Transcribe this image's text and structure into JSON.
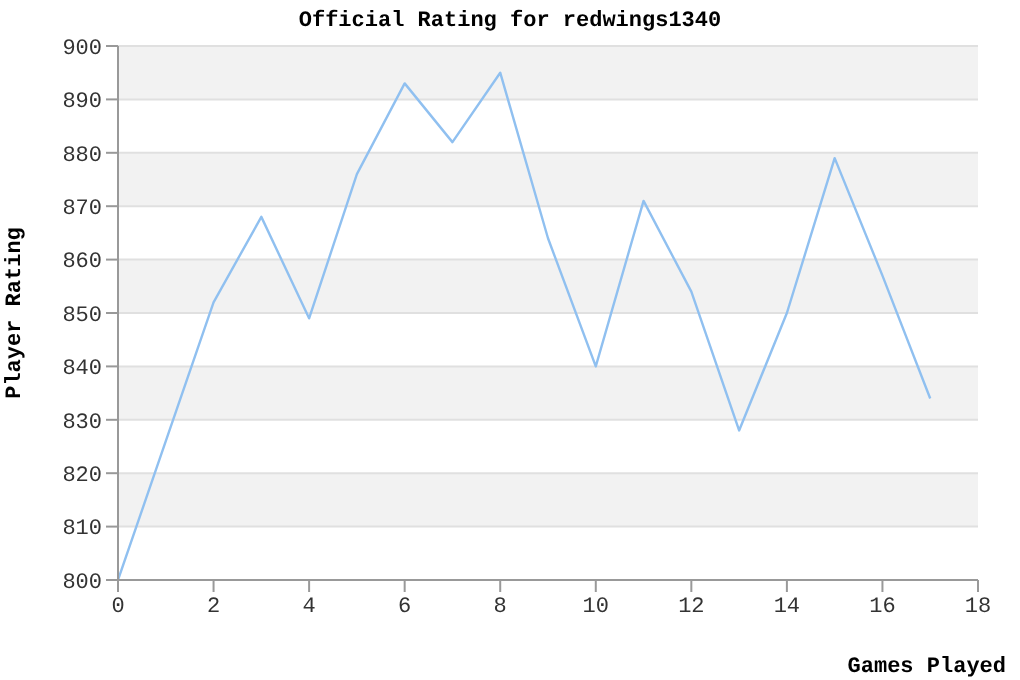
{
  "chart_data": {
    "type": "line",
    "title": "Official Rating for redwings1340",
    "xlabel": "Games Played",
    "ylabel": "Player Rating",
    "x": [
      0,
      1,
      2,
      3,
      4,
      5,
      6,
      7,
      8,
      9,
      10,
      11,
      12,
      13,
      14,
      15,
      16,
      17
    ],
    "series": [
      {
        "color": "#90c0f0",
        "values": [
          800,
          826,
          852,
          868,
          849,
          876,
          893,
          882,
          895,
          864,
          840,
          871,
          854,
          828,
          850,
          879,
          857,
          834
        ]
      }
    ],
    "xlim": [
      0,
      18
    ],
    "xticks": [
      0,
      2,
      4,
      6,
      8,
      10,
      12,
      14,
      16,
      18
    ],
    "ylim": [
      800,
      900
    ],
    "yticks": [
      800,
      810,
      820,
      830,
      840,
      850,
      860,
      870,
      880,
      890,
      900
    ],
    "grid": "y",
    "marker": "none",
    "line_style": "solid",
    "legend": false
  }
}
